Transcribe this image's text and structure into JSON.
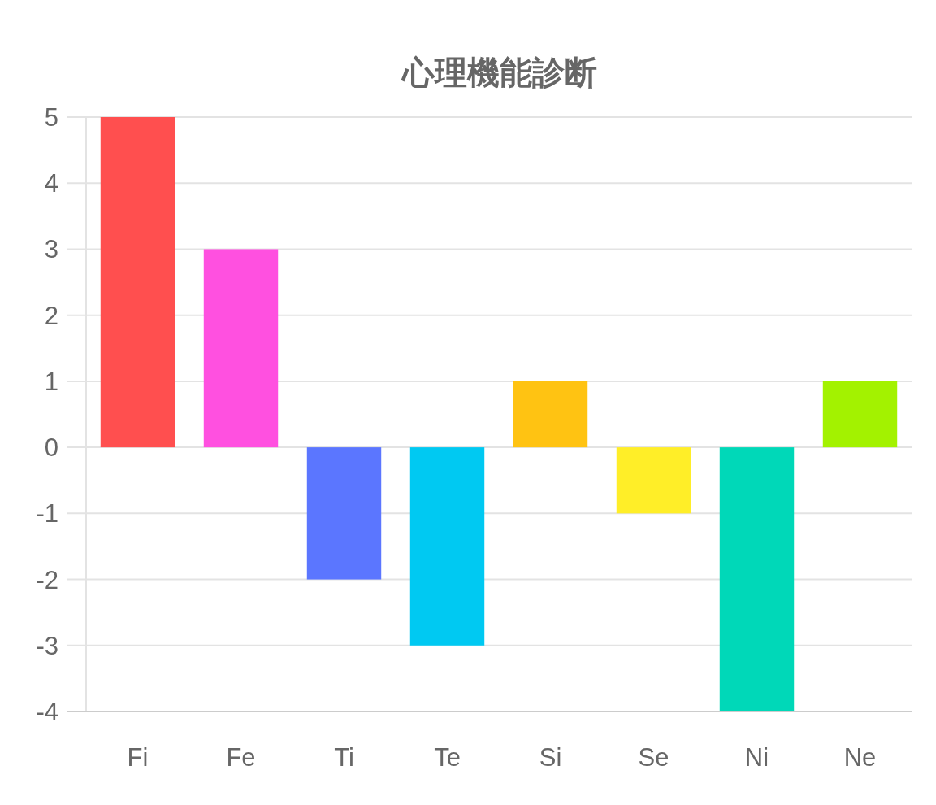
{
  "chart_data": {
    "type": "bar",
    "title": "心理機能診断",
    "categories": [
      "Fi",
      "Fe",
      "Ti",
      "Te",
      "Si",
      "Se",
      "Ni",
      "Ne"
    ],
    "values": [
      5,
      3,
      -2,
      -3,
      1,
      -1,
      -4,
      1
    ],
    "colors": [
      "#ff4f4f",
      "#ff50e0",
      "#5b76ff",
      "#00c9f2",
      "#ffc312",
      "#ffee28",
      "#00d8b8",
      "#a3f200"
    ],
    "ylim": [
      -4,
      5
    ],
    "yticks": [
      -4,
      -3,
      -2,
      -1,
      0,
      1,
      2,
      3,
      4,
      5
    ],
    "grid": "y"
  }
}
